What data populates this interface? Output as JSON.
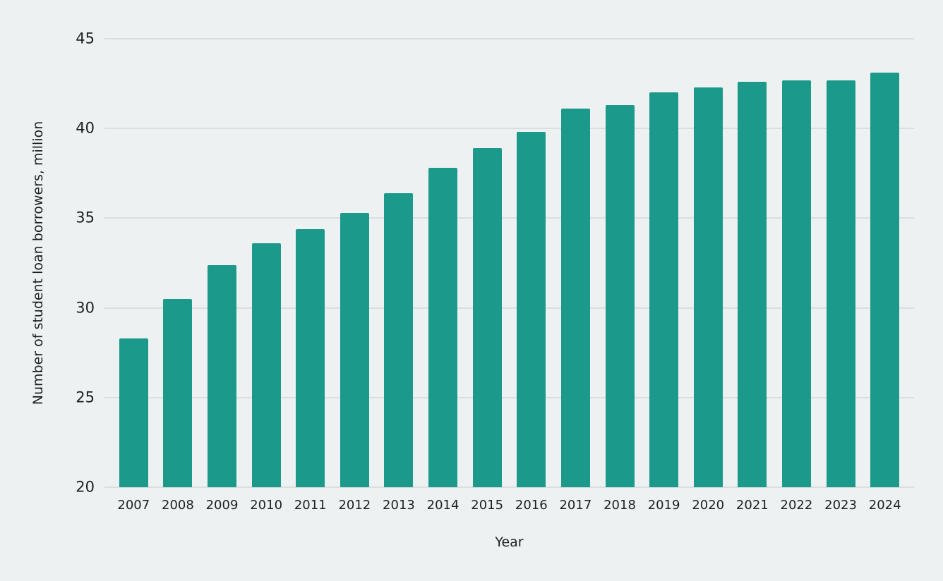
{
  "chart_data": {
    "type": "bar",
    "title": "",
    "categories": [
      "2007",
      "2008",
      "2009",
      "2010",
      "2011",
      "2012",
      "2013",
      "2014",
      "2015",
      "2016",
      "2017",
      "2018",
      "2019",
      "2020",
      "2021",
      "2022",
      "2023",
      "2024"
    ],
    "values": [
      28.3,
      30.5,
      32.4,
      33.6,
      34.4,
      35.3,
      36.4,
      37.8,
      38.9,
      39.8,
      41.1,
      41.3,
      42.0,
      42.3,
      42.6,
      42.7,
      42.7,
      43.1
    ],
    "xlabel": "Year",
    "ylabel": "Number of student loan borrowers, million",
    "ylim": [
      20,
      45
    ],
    "yticks": [
      20,
      25,
      30,
      35,
      40,
      45
    ],
    "grid": true,
    "legend": "none",
    "bar_color": "#1b998b",
    "background_color": "#edf1f2",
    "gridline_color": "#c5cbcd",
    "text_color": "#1d2022"
  }
}
